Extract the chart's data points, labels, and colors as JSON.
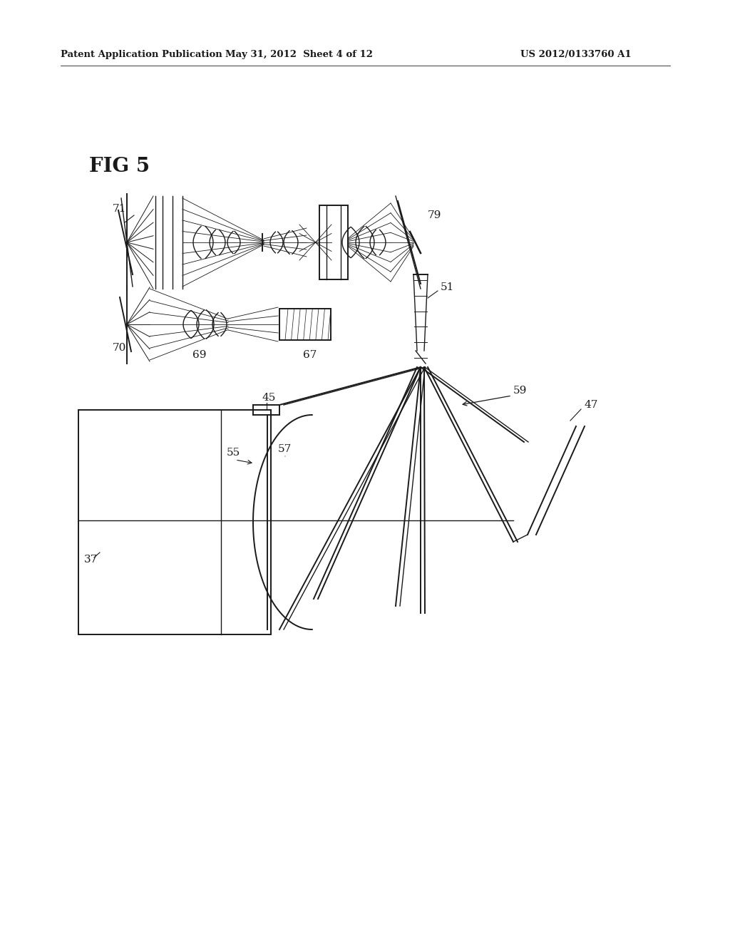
{
  "bg_color": "#ffffff",
  "line_color": "#1a1a1a",
  "header_left": "Patent Application Publication",
  "header_center": "May 31, 2012  Sheet 4 of 12",
  "header_right": "US 2012/0133760 A1",
  "fig_label": "FIG 5"
}
